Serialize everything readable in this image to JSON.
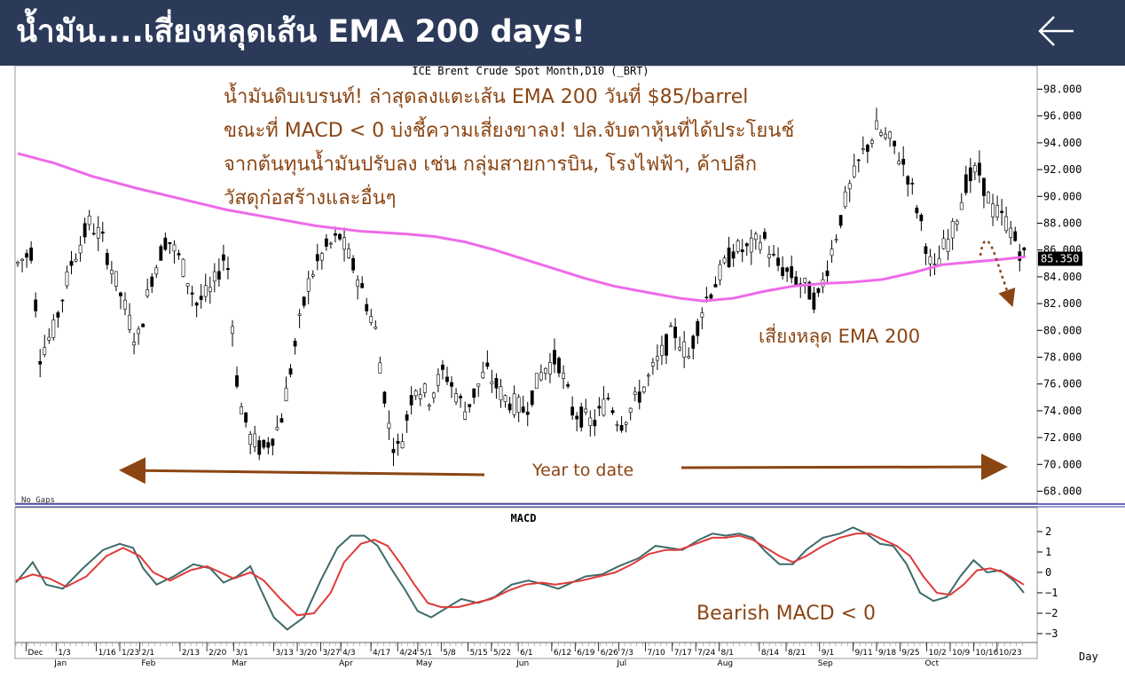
{
  "header": {
    "title": "น้ำมัน....เสี่ยงหลุดเส้น EMA 200 days!",
    "back_icon": "arrow-left-icon"
  },
  "chart_data": [
    {
      "type": "candlestick",
      "title": "ICE Brent Crude Spot Month,D10 (_BRT)",
      "ylim": [
        67,
        99
      ],
      "yticks": [
        "98.000",
        "96.000",
        "94.000",
        "92.000",
        "90.000",
        "88.000",
        "86.000",
        "84.000",
        "82.000",
        "80.000",
        "78.000",
        "76.000",
        "74.000",
        "72.000",
        "70.000",
        "68.000"
      ],
      "last_price_label": "85.350",
      "last_price": 85.35,
      "ema200": [
        [
          0,
          93.2
        ],
        [
          12,
          92.5
        ],
        [
          25,
          91.5
        ],
        [
          40,
          90.6
        ],
        [
          55,
          89.8
        ],
        [
          70,
          89.0
        ],
        [
          85,
          88.4
        ],
        [
          100,
          87.8
        ],
        [
          115,
          87.4
        ],
        [
          130,
          87.2
        ],
        [
          140,
          87.0
        ],
        [
          150,
          86.6
        ],
        [
          160,
          86.0
        ],
        [
          170,
          85.3
        ],
        [
          180,
          84.6
        ],
        [
          190,
          83.9
        ],
        [
          200,
          83.3
        ],
        [
          212,
          82.8
        ],
        [
          222,
          82.4
        ],
        [
          230,
          82.2
        ],
        [
          240,
          82.4
        ],
        [
          250,
          82.9
        ],
        [
          260,
          83.3
        ],
        [
          270,
          83.5
        ],
        [
          280,
          83.6
        ],
        [
          290,
          83.8
        ],
        [
          300,
          84.3
        ],
        [
          310,
          84.9
        ],
        [
          320,
          85.1
        ],
        [
          330,
          85.3
        ],
        [
          338,
          85.5
        ]
      ],
      "price_path": [
        [
          0,
          85
        ],
        [
          5,
          86
        ],
        [
          7,
          78
        ],
        [
          12,
          80
        ],
        [
          18,
          85
        ],
        [
          24,
          88
        ],
        [
          28,
          87
        ],
        [
          34,
          83
        ],
        [
          40,
          79
        ],
        [
          45,
          84
        ],
        [
          50,
          87
        ],
        [
          55,
          85
        ],
        [
          60,
          82
        ],
        [
          65,
          83
        ],
        [
          70,
          86
        ],
        [
          74,
          75
        ],
        [
          78,
          72
        ],
        [
          82,
          71
        ],
        [
          88,
          73
        ],
        [
          94,
          80
        ],
        [
          98,
          84
        ],
        [
          103,
          86
        ],
        [
          108,
          87
        ],
        [
          114,
          84
        ],
        [
          120,
          80
        ],
        [
          125,
          72
        ],
        [
          128,
          71
        ],
        [
          133,
          76
        ],
        [
          138,
          75
        ],
        [
          143,
          77
        ],
        [
          150,
          74
        ],
        [
          157,
          77
        ],
        [
          163,
          75
        ],
        [
          170,
          74
        ],
        [
          176,
          77
        ],
        [
          181,
          78
        ],
        [
          186,
          74
        ],
        [
          193,
          73
        ],
        [
          198,
          75
        ],
        [
          202,
          73
        ],
        [
          208,
          75
        ],
        [
          213,
          77
        ],
        [
          220,
          80
        ],
        [
          225,
          78
        ],
        [
          230,
          82
        ],
        [
          235,
          84
        ],
        [
          240,
          86
        ],
        [
          245,
          86
        ],
        [
          250,
          87
        ],
        [
          254,
          85
        ],
        [
          260,
          84
        ],
        [
          265,
          83
        ],
        [
          268,
          82
        ],
        [
          273,
          86
        ],
        [
          278,
          90
        ],
        [
          283,
          93
        ],
        [
          288,
          95
        ],
        [
          293,
          94
        ],
        [
          298,
          92
        ],
        [
          303,
          88
        ],
        [
          307,
          84
        ],
        [
          310,
          86
        ],
        [
          313,
          87
        ],
        [
          318,
          91
        ],
        [
          322,
          92
        ],
        [
          327,
          89
        ],
        [
          332,
          88
        ],
        [
          336,
          86
        ],
        [
          338,
          85.35
        ]
      ],
      "date_labels": [
        {
          "x": 3,
          "label": "Dec"
        },
        {
          "x": 12,
          "label": "1/3"
        },
        {
          "x": 24,
          "label": "1/16"
        },
        {
          "x": 31,
          "label": "1/23"
        },
        {
          "x": 37,
          "label": "2/1"
        },
        {
          "x": 49,
          "label": "2/13"
        },
        {
          "x": 57,
          "label": "2/20"
        },
        {
          "x": 65,
          "label": "3/1"
        },
        {
          "x": 77,
          "label": "3/13"
        },
        {
          "x": 84,
          "label": "3/20"
        },
        {
          "x": 91,
          "label": "3/27"
        },
        {
          "x": 97,
          "label": "4/3"
        },
        {
          "x": 106,
          "label": "4/17"
        },
        {
          "x": 114,
          "label": "4/24"
        },
        {
          "x": 120,
          "label": "5/1"
        },
        {
          "x": 127,
          "label": "5/8"
        },
        {
          "x": 135,
          "label": "5/15"
        },
        {
          "x": 142,
          "label": "5/22"
        },
        {
          "x": 150,
          "label": "6/1"
        },
        {
          "x": 160,
          "label": "6/12"
        },
        {
          "x": 167,
          "label": "6/19"
        },
        {
          "x": 174,
          "label": "6/26"
        },
        {
          "x": 180,
          "label": "7/3"
        },
        {
          "x": 188,
          "label": "7/10"
        },
        {
          "x": 196,
          "label": "7/17"
        },
        {
          "x": 203,
          "label": "7/24"
        },
        {
          "x": 210,
          "label": "8/1"
        },
        {
          "x": 222,
          "label": "8/14"
        },
        {
          "x": 230,
          "label": "8/21"
        },
        {
          "x": 240,
          "label": "9/1"
        },
        {
          "x": 250,
          "label": "9/11"
        },
        {
          "x": 257,
          "label": "9/18"
        },
        {
          "x": 264,
          "label": "9/25"
        },
        {
          "x": 272,
          "label": "10/2"
        },
        {
          "x": 279,
          "label": "10/9"
        },
        {
          "x": 286,
          "label": "10/16"
        },
        {
          "x": 293,
          "label": "10/23"
        }
      ],
      "month_labels": [
        {
          "x": 12,
          "label": "Jan"
        },
        {
          "x": 38,
          "label": "Feb"
        },
        {
          "x": 65,
          "label": "Mar"
        },
        {
          "x": 97,
          "label": "Apr"
        },
        {
          "x": 120,
          "label": "May"
        },
        {
          "x": 150,
          "label": "Jun"
        },
        {
          "x": 180,
          "label": "Jul"
        },
        {
          "x": 210,
          "label": "Aug"
        },
        {
          "x": 240,
          "label": "Sep"
        },
        {
          "x": 272,
          "label": "Oct"
        }
      ],
      "no_gaps_label": "No Gaps",
      "x_unit_label": "Day"
    },
    {
      "type": "line",
      "title": "MACD",
      "ylim": [
        -3.5,
        2.8
      ],
      "yticks": [
        "2",
        "1",
        "0",
        "−1",
        "−2",
        "−3"
      ],
      "ytick_values": [
        2,
        1,
        0,
        -1,
        -2,
        -3
      ],
      "series": [
        {
          "color": "#3d6b6b",
          "values": [
            [
              0,
              -0.5
            ],
            [
              5,
              0.5
            ],
            [
              9,
              -0.6
            ],
            [
              14,
              -0.8
            ],
            [
              20,
              0.2
            ],
            [
              26,
              1.1
            ],
            [
              31,
              1.4
            ],
            [
              35,
              1.2
            ],
            [
              38,
              0.2
            ],
            [
              42,
              -0.6
            ],
            [
              47,
              -0.2
            ],
            [
              53,
              0.4
            ],
            [
              58,
              0.2
            ],
            [
              62,
              -0.5
            ],
            [
              66,
              -0.2
            ],
            [
              70,
              0.3
            ],
            [
              73,
              -0.8
            ],
            [
              77,
              -2.2
            ],
            [
              81,
              -2.8
            ],
            [
              86,
              -2.2
            ],
            [
              91,
              -0.4
            ],
            [
              96,
              1.2
            ],
            [
              100,
              1.8
            ],
            [
              104,
              1.8
            ],
            [
              108,
              1.3
            ],
            [
              112,
              0.2
            ],
            [
              116,
              -0.8
            ],
            [
              120,
              -1.9
            ],
            [
              124,
              -2.2
            ],
            [
              128,
              -1.8
            ],
            [
              133,
              -1.3
            ],
            [
              138,
              -1.5
            ],
            [
              143,
              -1.2
            ],
            [
              148,
              -0.6
            ],
            [
              153,
              -0.4
            ],
            [
              158,
              -0.6
            ],
            [
              162,
              -0.8
            ],
            [
              166,
              -0.5
            ],
            [
              170,
              -0.2
            ],
            [
              175,
              -0.1
            ],
            [
              180,
              0.3
            ],
            [
              186,
              0.7
            ],
            [
              191,
              1.3
            ],
            [
              195,
              1.2
            ],
            [
              199,
              1.1
            ],
            [
              204,
              1.6
            ],
            [
              208,
              1.9
            ],
            [
              212,
              1.8
            ],
            [
              216,
              1.9
            ],
            [
              220,
              1.7
            ],
            [
              224,
              1.0
            ],
            [
              228,
              0.4
            ],
            [
              232,
              0.4
            ],
            [
              236,
              1.1
            ],
            [
              241,
              1.7
            ],
            [
              246,
              1.9
            ],
            [
              250,
              2.2
            ],
            [
              254,
              1.9
            ],
            [
              258,
              1.4
            ],
            [
              262,
              1.3
            ],
            [
              266,
              0.4
            ],
            [
              270,
              -1.0
            ],
            [
              274,
              -1.4
            ],
            [
              278,
              -1.2
            ],
            [
              282,
              -0.2
            ],
            [
              286,
              0.6
            ],
            [
              290,
              0.0
            ],
            [
              294,
              0.1
            ],
            [
              298,
              -0.4
            ],
            [
              301,
              -1.0
            ]
          ]
        },
        {
          "color": "#e03a3a",
          "values": [
            [
              0,
              -0.4
            ],
            [
              5,
              -0.1
            ],
            [
              10,
              -0.3
            ],
            [
              15,
              -0.7
            ],
            [
              21,
              -0.2
            ],
            [
              27,
              0.8
            ],
            [
              32,
              1.2
            ],
            [
              37,
              0.8
            ],
            [
              41,
              0.0
            ],
            [
              46,
              -0.4
            ],
            [
              52,
              0.1
            ],
            [
              57,
              0.3
            ],
            [
              61,
              0.0
            ],
            [
              65,
              -0.3
            ],
            [
              70,
              0.0
            ],
            [
              74,
              -0.4
            ],
            [
              79,
              -1.3
            ],
            [
              84,
              -2.1
            ],
            [
              89,
              -2.0
            ],
            [
              94,
              -1.0
            ],
            [
              98,
              0.5
            ],
            [
              103,
              1.4
            ],
            [
              107,
              1.6
            ],
            [
              111,
              1.3
            ],
            [
              115,
              0.4
            ],
            [
              119,
              -0.6
            ],
            [
              123,
              -1.5
            ],
            [
              127,
              -1.7
            ],
            [
              132,
              -1.7
            ],
            [
              137,
              -1.5
            ],
            [
              142,
              -1.3
            ],
            [
              147,
              -0.9
            ],
            [
              152,
              -0.6
            ],
            [
              157,
              -0.5
            ],
            [
              161,
              -0.6
            ],
            [
              165,
              -0.5
            ],
            [
              169,
              -0.4
            ],
            [
              174,
              -0.2
            ],
            [
              179,
              0.0
            ],
            [
              184,
              0.4
            ],
            [
              189,
              0.9
            ],
            [
              194,
              1.1
            ],
            [
              198,
              1.1
            ],
            [
              203,
              1.4
            ],
            [
              208,
              1.7
            ],
            [
              212,
              1.7
            ],
            [
              216,
              1.8
            ],
            [
              220,
              1.6
            ],
            [
              224,
              1.2
            ],
            [
              228,
              0.8
            ],
            [
              232,
              0.5
            ],
            [
              236,
              0.8
            ],
            [
              241,
              1.3
            ],
            [
              246,
              1.7
            ],
            [
              251,
              1.9
            ],
            [
              255,
              1.9
            ],
            [
              259,
              1.6
            ],
            [
              263,
              1.3
            ],
            [
              267,
              0.8
            ],
            [
              271,
              -0.2
            ],
            [
              275,
              -1.0
            ],
            [
              279,
              -1.1
            ],
            [
              283,
              -0.6
            ],
            [
              287,
              0.1
            ],
            [
              291,
              0.2
            ],
            [
              295,
              0.0
            ],
            [
              299,
              -0.4
            ],
            [
              301,
              -0.6
            ]
          ]
        }
      ]
    }
  ],
  "annotations": {
    "main_text": [
      "น้ำมันดิบเบรนท์! ล่าสุดลงแตะเส้น EMA 200 วันที่ $85/barrel",
      "ขณะที่ MACD < 0 บ่งชี้ความเสี่ยงขาลง! ปล.จับตาหุ้นที่ได้ประโยนช์",
      "จากต้นทุนน้ำมันปรับลง เช่น กลุ่มสายการบิน, โรงไฟฟ้า, ค้าปลีก",
      "วัสดุก่อสร้างและอื่นๆ"
    ],
    "ema_note": "เสี่ยงหลุด EMA 200",
    "ytd_label": "Year to date",
    "macd_note": "Bearish MACD < 0"
  },
  "colors": {
    "header_bg": "#2c3a5a",
    "annotation": "#8b4513",
    "ema": "#ee6ae8",
    "macd_line": "#3d6b6b",
    "signal_line": "#e03a3a"
  }
}
